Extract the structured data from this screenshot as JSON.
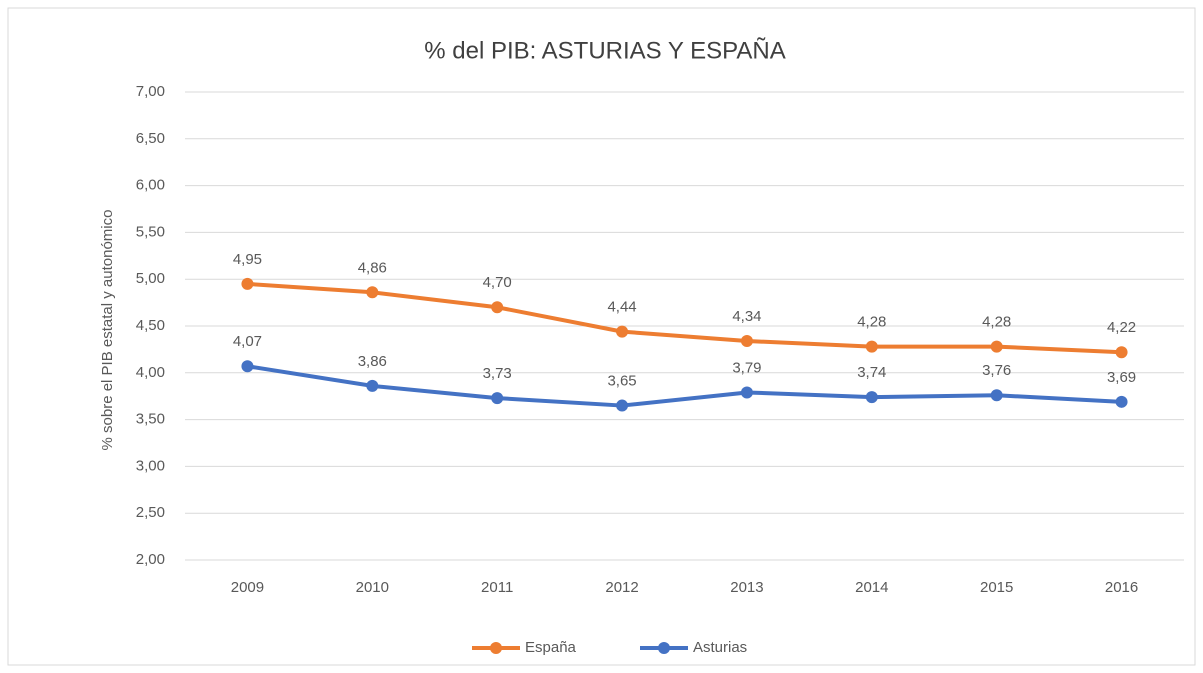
{
  "chart_data": {
    "type": "line",
    "title": "% del PIB: ASTURIAS Y ESPAÑA",
    "y_label": "% sobre el PIB estatal y autonómico",
    "categories": [
      "2009",
      "2010",
      "2011",
      "2012",
      "2013",
      "2014",
      "2015",
      "2016"
    ],
    "series": [
      {
        "name": "España",
        "color": "#ed7d31",
        "values": [
          4.95,
          4.86,
          4.7,
          4.44,
          4.34,
          4.28,
          4.28,
          4.22
        ],
        "value_labels": [
          "4,95",
          "4,86",
          "4,70",
          "4,44",
          "4,34",
          "4,28",
          "4,28",
          "4,22"
        ]
      },
      {
        "name": "Asturias",
        "color": "#4472c4",
        "values": [
          4.07,
          3.86,
          3.73,
          3.65,
          3.79,
          3.74,
          3.76,
          3.69
        ],
        "value_labels": [
          "4,07",
          "3,86",
          "3,73",
          "3,65",
          "3,79",
          "3,74",
          "3,76",
          "3,69"
        ]
      }
    ],
    "ylim": [
      2.0,
      7.0
    ],
    "yticks": [
      {
        "value": 2.0,
        "label": "2,00"
      },
      {
        "value": 2.5,
        "label": "2,50"
      },
      {
        "value": 3.0,
        "label": "3,00"
      },
      {
        "value": 3.5,
        "label": "3,50"
      },
      {
        "value": 4.0,
        "label": "4,00"
      },
      {
        "value": 4.5,
        "label": "4,50"
      },
      {
        "value": 5.0,
        "label": "5,00"
      },
      {
        "value": 5.5,
        "label": "5,50"
      },
      {
        "value": 6.0,
        "label": "6,00"
      },
      {
        "value": 6.5,
        "label": "6,50"
      },
      {
        "value": 7.0,
        "label": "7,00"
      }
    ],
    "grid": true,
    "legend": "bottom"
  }
}
